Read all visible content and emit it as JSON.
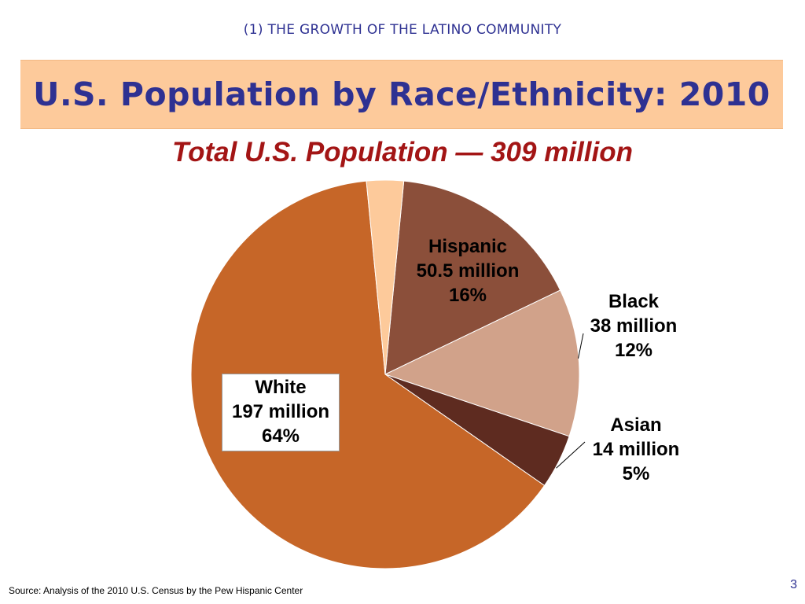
{
  "slide": {
    "kicker": "(1) THE GROWTH OF THE LATINO COMMUNITY",
    "title": "U.S. Population by Race/Ethnicity: 2010",
    "source": "Source:  Analysis of the 2010 U.S. Census by the Pew Hispanic Center",
    "page_number": "3"
  },
  "chart_data": {
    "type": "pie",
    "title": "Total U.S. Population — 309 million",
    "unit": "million",
    "slices": [
      {
        "name": "Hispanic",
        "value_label": "50.5 million",
        "percent_label": "16%",
        "value": 50.5,
        "percent": 16,
        "color": "#8b4f3a"
      },
      {
        "name": "Black",
        "value_label": "38 million",
        "percent_label": "12%",
        "value": 38,
        "percent": 12,
        "color": "#d1a28a"
      },
      {
        "name": "Asian",
        "value_label": "14 million",
        "percent_label": "5%",
        "value": 14,
        "percent": 5,
        "color": "#5e2b20"
      },
      {
        "name": "White",
        "value_label": "197 million",
        "percent_label": "64%",
        "value": 197,
        "percent": 64,
        "color": "#c66628"
      },
      {
        "name": "",
        "value_label": "",
        "percent_label": "",
        "value": 9.5,
        "percent": 3,
        "color": "#fdca9b"
      }
    ]
  }
}
